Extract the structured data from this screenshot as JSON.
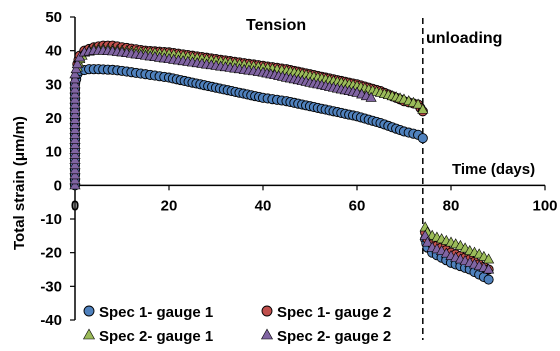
{
  "chart_data": {
    "type": "scatter",
    "title": "",
    "xlabel": "Time (days)",
    "ylabel": "Total strain (μm/m)",
    "xlim": [
      0,
      100
    ],
    "ylim": [
      -40,
      50
    ],
    "x_ticks": [
      "0",
      "20",
      "40",
      "60",
      "80",
      "100"
    ],
    "y_ticks": [
      "50",
      "40",
      "30",
      "20",
      "10",
      "0",
      "-10",
      "-20",
      "-30",
      "-40"
    ],
    "grid": false,
    "legend_position": "bottom-left",
    "annotations": [
      {
        "text": "Tension",
        "x": 38,
        "y": 46
      },
      {
        "text": "unloading",
        "x": 85,
        "y": 42
      }
    ],
    "unloading_x": 74,
    "series": [
      {
        "name": "Spec 1- gauge 1",
        "marker": "circle",
        "color": "#4f81bd",
        "points": [
          [
            0,
            0
          ],
          [
            0,
            3
          ],
          [
            0,
            6
          ],
          [
            0,
            9
          ],
          [
            0,
            12
          ],
          [
            0,
            15
          ],
          [
            0,
            18
          ],
          [
            0,
            21
          ],
          [
            0,
            24
          ],
          [
            0,
            27
          ],
          [
            0,
            30
          ],
          [
            0.5,
            33
          ],
          [
            1,
            34
          ],
          [
            3,
            34.5
          ],
          [
            5,
            34.5
          ],
          [
            8,
            34.3
          ],
          [
            10,
            34
          ],
          [
            15,
            33
          ],
          [
            20,
            32
          ],
          [
            25,
            30.5
          ],
          [
            30,
            29
          ],
          [
            35,
            27.5
          ],
          [
            40,
            26
          ],
          [
            45,
            25
          ],
          [
            50,
            23.5
          ],
          [
            55,
            22
          ],
          [
            60,
            20.5
          ],
          [
            65,
            18.5
          ],
          [
            70,
            16
          ],
          [
            73,
            15
          ],
          [
            74,
            14
          ],
          [
            74.5,
            -16
          ],
          [
            75,
            -18.5
          ],
          [
            76,
            -20
          ],
          [
            78,
            -21.5
          ],
          [
            80,
            -23
          ],
          [
            82,
            -24
          ],
          [
            84,
            -25
          ],
          [
            86,
            -26.5
          ],
          [
            88,
            -28
          ]
        ]
      },
      {
        "name": "Spec 1- gauge 2",
        "marker": "circle",
        "color": "#c0504d",
        "points": [
          [
            0.5,
            36
          ],
          [
            1,
            38.5
          ],
          [
            2,
            40
          ],
          [
            4,
            41
          ],
          [
            6,
            41.5
          ],
          [
            8,
            41.5
          ],
          [
            10,
            41
          ],
          [
            15,
            40
          ],
          [
            20,
            39.5
          ],
          [
            25,
            38.5
          ],
          [
            30,
            37.5
          ],
          [
            35,
            36.5
          ],
          [
            40,
            35.5
          ],
          [
            45,
            34.5
          ],
          [
            50,
            33
          ],
          [
            55,
            31.5
          ],
          [
            60,
            30
          ],
          [
            65,
            28
          ],
          [
            70,
            25
          ],
          [
            73,
            24
          ],
          [
            74,
            22
          ],
          [
            74.5,
            -14
          ],
          [
            75,
            -16
          ],
          [
            76,
            -17.5
          ],
          [
            78,
            -18.5
          ],
          [
            80,
            -20
          ],
          [
            82,
            -21
          ],
          [
            84,
            -22
          ],
          [
            86,
            -23.5
          ],
          [
            88,
            -25
          ]
        ]
      },
      {
        "name": "Spec 2- gauge 1",
        "marker": "triangle",
        "color": "#9bbb59",
        "points": [
          [
            0.5,
            35
          ],
          [
            1,
            37.5
          ],
          [
            2,
            39.5
          ],
          [
            4,
            40.5
          ],
          [
            6,
            40.5
          ],
          [
            8,
            40.3
          ],
          [
            10,
            40
          ],
          [
            15,
            39.5
          ],
          [
            20,
            39
          ],
          [
            25,
            38
          ],
          [
            30,
            37
          ],
          [
            35,
            36
          ],
          [
            40,
            35
          ],
          [
            45,
            34
          ],
          [
            50,
            32.5
          ],
          [
            55,
            31
          ],
          [
            60,
            29.5
          ],
          [
            65,
            27.5
          ],
          [
            70,
            25.5
          ],
          [
            73,
            24
          ],
          [
            74,
            22.5
          ],
          [
            74.5,
            -12.5
          ],
          [
            75,
            -14
          ],
          [
            76,
            -15
          ],
          [
            78,
            -16
          ],
          [
            80,
            -17
          ],
          [
            82,
            -18
          ],
          [
            84,
            -19.5
          ],
          [
            86,
            -20.5
          ],
          [
            88,
            -22
          ]
        ]
      },
      {
        "name": "Spec 2- gauge 2",
        "marker": "triangle",
        "color": "#8064a2",
        "points": [
          [
            0,
            0
          ],
          [
            0,
            3
          ],
          [
            0,
            6
          ],
          [
            0,
            9
          ],
          [
            0,
            12
          ],
          [
            0,
            15
          ],
          [
            0,
            18
          ],
          [
            0,
            21
          ],
          [
            0,
            24
          ],
          [
            0,
            27
          ],
          [
            0,
            30
          ],
          [
            0,
            33
          ],
          [
            0.5,
            36
          ],
          [
            1,
            38
          ],
          [
            2,
            39.5
          ],
          [
            4,
            40
          ],
          [
            6,
            40
          ],
          [
            8,
            39.8
          ],
          [
            10,
            39.5
          ],
          [
            15,
            38.5
          ],
          [
            20,
            37.5
          ],
          [
            25,
            36.5
          ],
          [
            30,
            35.5
          ],
          [
            35,
            34.5
          ],
          [
            40,
            33.5
          ],
          [
            45,
            32
          ],
          [
            50,
            30.5
          ],
          [
            55,
            29
          ],
          [
            60,
            27.5
          ],
          [
            63,
            26
          ],
          [
            74.5,
            -15
          ],
          [
            75,
            -17
          ],
          [
            76,
            -18.5
          ],
          [
            78,
            -19.5
          ],
          [
            80,
            -21
          ],
          [
            82,
            -22
          ],
          [
            84,
            -23
          ],
          [
            86,
            -24
          ],
          [
            88,
            -25
          ]
        ]
      }
    ]
  }
}
